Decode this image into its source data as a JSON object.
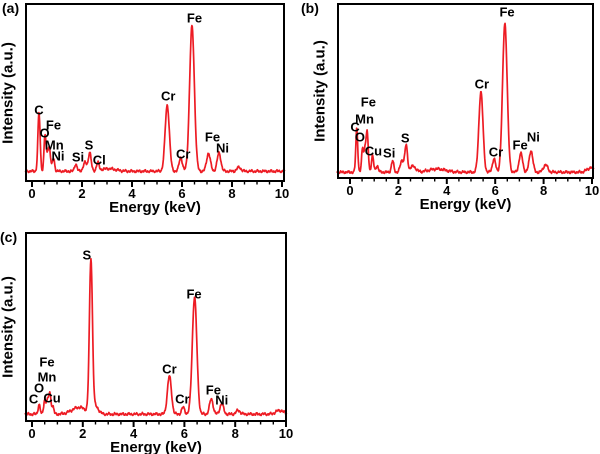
{
  "figure": {
    "background": "#ffffff",
    "line_color": "#ed1c24",
    "frame_color": "#000000",
    "text_color": "#000000",
    "xlabel": "Energy (keV)",
    "ylabel": "Intensity (a.u.)",
    "x_ticks": [
      0,
      2,
      4,
      6,
      8,
      10
    ],
    "x_minor_tick_step": 0.5
  },
  "chart_data": [
    {
      "type": "line",
      "panel": "(a)",
      "xlabel": "Energy (keV)",
      "ylabel": "Intensity (a.u.)",
      "xlim": [
        0,
        10
      ],
      "x_ticks": [
        0,
        2,
        4,
        6,
        8,
        10
      ],
      "y_axis": "arbitrary units (no ticks)",
      "peaks": [
        {
          "element": "C",
          "keV": 0.28,
          "intensity": 0.4,
          "w": 0.045
        },
        {
          "element": "O",
          "keV": 0.52,
          "intensity": 0.25,
          "w": 0.04
        },
        {
          "element": "Mn",
          "keV": 0.62,
          "intensity": 0.1,
          "w": 0.04
        },
        {
          "element": "Fe",
          "keV": 0.7,
          "intensity": 0.15,
          "w": 0.045
        },
        {
          "element": "Ni",
          "keV": 0.86,
          "intensity": 0.09,
          "w": 0.045
        },
        {
          "element": "Si",
          "keV": 1.75,
          "intensity": 0.05,
          "w": 0.05
        },
        {
          "element": "",
          "keV": 2.12,
          "intensity": 0.06,
          "w": 0.07
        },
        {
          "element": "S",
          "keV": 2.31,
          "intensity": 0.13,
          "w": 0.055
        },
        {
          "element": "Cl",
          "keV": 2.63,
          "intensity": 0.055,
          "w": 0.05
        },
        {
          "element": "",
          "keV": 3.05,
          "intensity": 0.018,
          "w": 0.3
        },
        {
          "element": "Cr",
          "keV": 5.41,
          "intensity": 0.455,
          "w": 0.085
        },
        {
          "element": "Cr",
          "keV": 5.95,
          "intensity": 0.095,
          "w": 0.065
        },
        {
          "element": "Fe",
          "keV": 6.4,
          "intensity": 1.0,
          "w": 0.095
        },
        {
          "element": "Fe",
          "keV": 7.06,
          "intensity": 0.125,
          "w": 0.075
        },
        {
          "element": "Ni",
          "keV": 7.48,
          "intensity": 0.125,
          "w": 0.075
        },
        {
          "element": "",
          "keV": 8.28,
          "intensity": 0.028,
          "w": 0.08
        }
      ],
      "annotations": [
        {
          "text": "C",
          "x": 0.28,
          "y": 0.402
        },
        {
          "text": "Fe",
          "x": 0.86,
          "y": 0.318
        },
        {
          "text": "O",
          "x": 0.5,
          "y": 0.274
        },
        {
          "text": "Mn",
          "x": 0.89,
          "y": 0.207
        },
        {
          "text": "Ni",
          "x": 1.04,
          "y": 0.145
        },
        {
          "text": "Si",
          "x": 1.84,
          "y": 0.14
        },
        {
          "text": "S",
          "x": 2.28,
          "y": 0.207
        },
        {
          "text": "Cl",
          "x": 2.69,
          "y": 0.123
        },
        {
          "text": "Cr",
          "x": 5.45,
          "y": 0.478
        },
        {
          "text": "Cr",
          "x": 6.05,
          "y": 0.156
        },
        {
          "text": "Fe",
          "x": 6.5,
          "y": 0.916
        },
        {
          "text": "Fe",
          "x": 7.22,
          "y": 0.251
        },
        {
          "text": "Ni",
          "x": 7.62,
          "y": 0.19
        }
      ]
    },
    {
      "type": "line",
      "panel": "(b)",
      "xlabel": "Energy (keV)",
      "ylabel": "Intensity (a.u.)",
      "xlim": [
        0,
        10
      ],
      "x_ticks": [
        0,
        2,
        4,
        6,
        8,
        10
      ],
      "y_axis": "arbitrary units (no ticks)",
      "peaks": [
        {
          "element": "C",
          "keV": 0.28,
          "intensity": 0.295,
          "w": 0.04
        },
        {
          "element": "O",
          "keV": 0.52,
          "intensity": 0.16,
          "w": 0.04
        },
        {
          "element": "Mn",
          "keV": 0.62,
          "intensity": 0.14,
          "w": 0.04
        },
        {
          "element": "Fe",
          "keV": 0.71,
          "intensity": 0.26,
          "w": 0.045
        },
        {
          "element": "Cu",
          "keV": 0.93,
          "intensity": 0.11,
          "w": 0.045
        },
        {
          "element": "",
          "keV": 1.12,
          "intensity": 0.045,
          "w": 0.05
        },
        {
          "element": "Si",
          "keV": 1.76,
          "intensity": 0.075,
          "w": 0.05
        },
        {
          "element": "",
          "keV": 2.15,
          "intensity": 0.08,
          "w": 0.07
        },
        {
          "element": "S",
          "keV": 2.32,
          "intensity": 0.175,
          "w": 0.055
        },
        {
          "element": "",
          "keV": 2.6,
          "intensity": 0.04,
          "w": 0.12
        },
        {
          "element": "",
          "keV": 3.6,
          "intensity": 0.022,
          "w": 0.35
        },
        {
          "element": "Cr",
          "keV": 5.41,
          "intensity": 0.54,
          "w": 0.085
        },
        {
          "element": "Cr",
          "keV": 5.95,
          "intensity": 0.09,
          "w": 0.065
        },
        {
          "element": "Fe",
          "keV": 6.4,
          "intensity": 1.0,
          "w": 0.095
        },
        {
          "element": "Fe",
          "keV": 7.06,
          "intensity": 0.125,
          "w": 0.075
        },
        {
          "element": "Ni",
          "keV": 7.48,
          "intensity": 0.145,
          "w": 0.075
        },
        {
          "element": "",
          "keV": 8.08,
          "intensity": 0.05,
          "w": 0.09
        },
        {
          "element": "",
          "keV": 9.95,
          "intensity": 0.03,
          "w": 0.15
        }
      ],
      "annotations": [
        {
          "text": "C",
          "x": 0.21,
          "y": 0.294
        },
        {
          "text": "O",
          "x": 0.41,
          "y": 0.237
        },
        {
          "text": "Mn",
          "x": 0.6,
          "y": 0.339
        },
        {
          "text": "Fe",
          "x": 0.76,
          "y": 0.435
        },
        {
          "text": "Cu",
          "x": 0.97,
          "y": 0.158
        },
        {
          "text": "Si",
          "x": 1.62,
          "y": 0.147
        },
        {
          "text": "S",
          "x": 2.28,
          "y": 0.232
        },
        {
          "text": "Cr",
          "x": 5.45,
          "y": 0.537
        },
        {
          "text": "Cr",
          "x": 6.03,
          "y": 0.153
        },
        {
          "text": "Fe",
          "x": 6.49,
          "y": 0.949
        },
        {
          "text": "Fe",
          "x": 7.03,
          "y": 0.192
        },
        {
          "text": "Ni",
          "x": 7.58,
          "y": 0.237
        }
      ]
    },
    {
      "type": "line",
      "panel": "(c)",
      "xlabel": "Energy (keV)",
      "ylabel": "Intensity (a.u.)",
      "xlim": [
        0,
        10
      ],
      "x_ticks": [
        0,
        2,
        4,
        6,
        8,
        10
      ],
      "y_axis": "arbitrary units (no ticks)",
      "peaks": [
        {
          "element": "C",
          "keV": 0.28,
          "intensity": 0.065,
          "w": 0.04
        },
        {
          "element": "O",
          "keV": 0.5,
          "intensity": 0.095,
          "w": 0.04
        },
        {
          "element": "Mn",
          "keV": 0.6,
          "intensity": 0.08,
          "w": 0.04
        },
        {
          "element": "Fe",
          "keV": 0.7,
          "intensity": 0.14,
          "w": 0.045
        },
        {
          "element": "Cu",
          "keV": 0.82,
          "intensity": 0.05,
          "w": 0.04
        },
        {
          "element": "",
          "keV": 1.85,
          "intensity": 0.045,
          "w": 0.28
        },
        {
          "element": "S",
          "keV": 2.32,
          "intensity": 1.0,
          "w": 0.06
        },
        {
          "element": "",
          "keV": 2.5,
          "intensity": 0.05,
          "w": 0.12
        },
        {
          "element": "Cr",
          "keV": 5.41,
          "intensity": 0.25,
          "w": 0.08
        },
        {
          "element": "Cr",
          "keV": 5.95,
          "intensity": 0.045,
          "w": 0.06
        },
        {
          "element": "Fe",
          "keV": 6.4,
          "intensity": 0.77,
          "w": 0.09
        },
        {
          "element": "Fe",
          "keV": 7.06,
          "intensity": 0.1,
          "w": 0.07
        },
        {
          "element": "Ni",
          "keV": 7.47,
          "intensity": 0.07,
          "w": 0.07
        },
        {
          "element": "",
          "keV": 8.12,
          "intensity": 0.025,
          "w": 0.08
        },
        {
          "element": "",
          "keV": 9.75,
          "intensity": 0.025,
          "w": 0.15
        }
      ],
      "annotations": [
        {
          "text": "C",
          "x": 0.06,
          "y": 0.121
        },
        {
          "text": "O",
          "x": 0.28,
          "y": 0.179
        },
        {
          "text": "Mn",
          "x": 0.59,
          "y": 0.237
        },
        {
          "text": "Fe",
          "x": 0.59,
          "y": 0.316
        },
        {
          "text": "Cu",
          "x": 0.79,
          "y": 0.126
        },
        {
          "text": "S",
          "x": 2.16,
          "y": 0.879
        },
        {
          "text": "Cr",
          "x": 5.41,
          "y": 0.279
        },
        {
          "text": "Cr",
          "x": 5.92,
          "y": 0.121
        },
        {
          "text": "Fe",
          "x": 6.38,
          "y": 0.674
        },
        {
          "text": "Fe",
          "x": 7.14,
          "y": 0.168
        },
        {
          "text": "Ni",
          "x": 7.47,
          "y": 0.116
        }
      ]
    }
  ]
}
